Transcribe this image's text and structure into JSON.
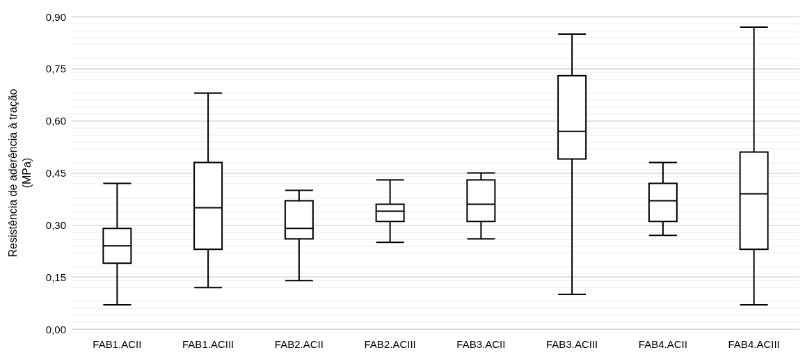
{
  "chart_data": {
    "type": "box",
    "ylabel": "Resistência de aderência à tração\n(MPa)",
    "categories": [
      "FAB1.ACII",
      "FAB1.ACIII",
      "FAB2.ACII",
      "FAB2.ACIII",
      "FAB3.ACII",
      "FAB3.ACIII",
      "FAB4.ACII",
      "FAB4.ACIII"
    ],
    "boxes": [
      {
        "low": 0.07,
        "q1": 0.19,
        "median": 0.24,
        "q3": 0.29,
        "high": 0.42
      },
      {
        "low": 0.12,
        "q1": 0.23,
        "median": 0.35,
        "q3": 0.48,
        "high": 0.68
      },
      {
        "low": 0.14,
        "q1": 0.26,
        "median": 0.29,
        "q3": 0.37,
        "high": 0.4
      },
      {
        "low": 0.25,
        "q1": 0.31,
        "median": 0.34,
        "q3": 0.36,
        "high": 0.43
      },
      {
        "low": 0.26,
        "q1": 0.31,
        "median": 0.36,
        "q3": 0.43,
        "high": 0.45
      },
      {
        "low": 0.1,
        "q1": 0.49,
        "median": 0.57,
        "q3": 0.73,
        "high": 0.85
      },
      {
        "low": 0.27,
        "q1": 0.31,
        "median": 0.37,
        "q3": 0.42,
        "high": 0.48
      },
      {
        "low": 0.07,
        "q1": 0.23,
        "median": 0.39,
        "q3": 0.51,
        "high": 0.87
      }
    ],
    "color": "#000000",
    "ylim": [
      0,
      0.9
    ],
    "yticks": [
      {
        "value": 0,
        "label": "0,00"
      },
      {
        "value": 0.15,
        "label": "0,15"
      },
      {
        "value": 0.3,
        "label": "0,30"
      },
      {
        "value": 0.45,
        "label": "0,45"
      },
      {
        "value": 0.6,
        "label": "0,60"
      },
      {
        "value": 0.75,
        "label": "0,75"
      },
      {
        "value": 0.9,
        "label": "0,90"
      }
    ],
    "grid": true
  }
}
